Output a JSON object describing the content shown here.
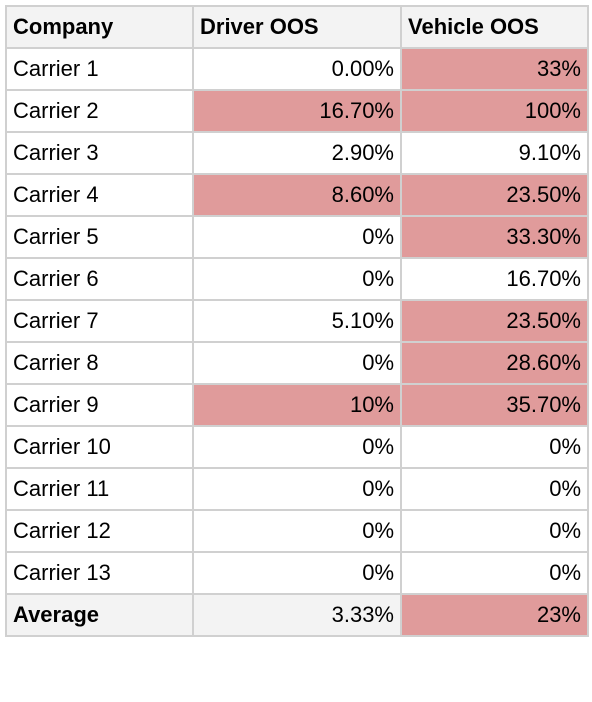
{
  "table": {
    "headers": [
      "Company",
      "Driver OOS",
      "Vehicle OOS"
    ],
    "highlight_color": "#e09b9b",
    "rows": [
      {
        "company": "Carrier 1",
        "driver": "0.00%",
        "vehicle": "33%",
        "driver_flag": false,
        "vehicle_flag": true
      },
      {
        "company": "Carrier 2",
        "driver": "16.70%",
        "vehicle": "100%",
        "driver_flag": true,
        "vehicle_flag": true
      },
      {
        "company": "Carrier 3",
        "driver": "2.90%",
        "vehicle": "9.10%",
        "driver_flag": false,
        "vehicle_flag": false
      },
      {
        "company": "Carrier 4",
        "driver": "8.60%",
        "vehicle": "23.50%",
        "driver_flag": true,
        "vehicle_flag": true
      },
      {
        "company": "Carrier 5",
        "driver": "0%",
        "vehicle": "33.30%",
        "driver_flag": false,
        "vehicle_flag": true
      },
      {
        "company": "Carrier 6",
        "driver": "0%",
        "vehicle": "16.70%",
        "driver_flag": false,
        "vehicle_flag": false
      },
      {
        "company": "Carrier 7",
        "driver": "5.10%",
        "vehicle": "23.50%",
        "driver_flag": false,
        "vehicle_flag": true
      },
      {
        "company": "Carrier 8",
        "driver": "0%",
        "vehicle": "28.60%",
        "driver_flag": false,
        "vehicle_flag": true
      },
      {
        "company": "Carrier 9",
        "driver": "10%",
        "vehicle": "35.70%",
        "driver_flag": true,
        "vehicle_flag": true
      },
      {
        "company": "Carrier 10",
        "driver": "0%",
        "vehicle": "0%",
        "driver_flag": false,
        "vehicle_flag": false
      },
      {
        "company": "Carrier 11",
        "driver": "0%",
        "vehicle": "0%",
        "driver_flag": false,
        "vehicle_flag": false
      },
      {
        "company": "Carrier 12",
        "driver": "0%",
        "vehicle": "0%",
        "driver_flag": false,
        "vehicle_flag": false
      },
      {
        "company": "Carrier 13",
        "driver": "0%",
        "vehicle": "0%",
        "driver_flag": false,
        "vehicle_flag": false
      }
    ],
    "average": {
      "company": "Average",
      "driver": "3.33%",
      "vehicle": "23%",
      "driver_flag": false,
      "vehicle_flag": true
    }
  }
}
